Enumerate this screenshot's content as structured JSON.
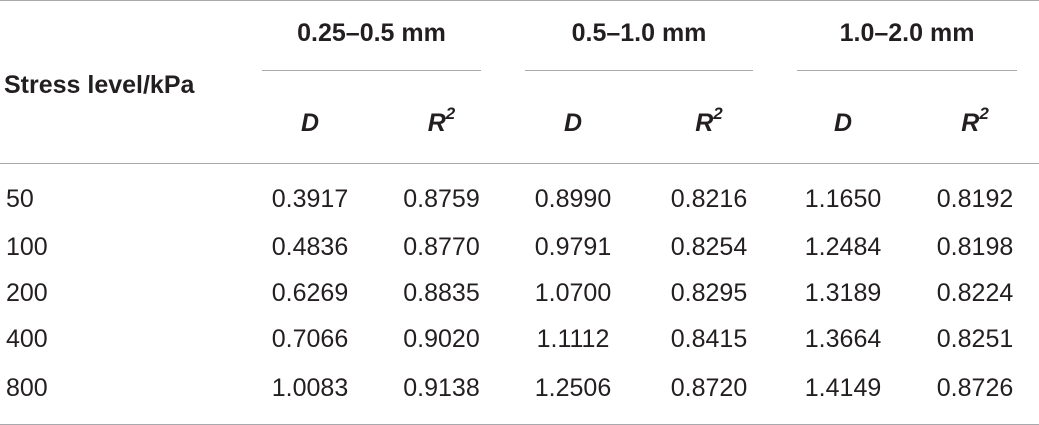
{
  "table": {
    "stub_header": "Stress level/kPa",
    "groups": [
      {
        "label": "0.25–0.5 mm"
      },
      {
        "label": "0.5–1.0 mm"
      },
      {
        "label": "1.0–2.0 mm"
      }
    ],
    "sub_headers": {
      "d": "D",
      "r": "R",
      "r_sup": "2"
    },
    "rows": [
      {
        "stress": "50",
        "values": [
          "0.3917",
          "0.8759",
          "0.8990",
          "0.8216",
          "1.1650",
          "0.8192"
        ]
      },
      {
        "stress": "100",
        "values": [
          "0.4836",
          "0.8770",
          "0.9791",
          "0.8254",
          "1.2484",
          "0.8198"
        ]
      },
      {
        "stress": "200",
        "values": [
          "0.6269",
          "0.8835",
          "1.0700",
          "0.8295",
          "1.3189",
          "0.8224"
        ]
      },
      {
        "stress": "400",
        "values": [
          "0.7066",
          "0.9020",
          "1.1112",
          "0.8415",
          "1.3664",
          "0.8251"
        ]
      },
      {
        "stress": "800",
        "values": [
          "1.0083",
          "0.9138",
          "1.2506",
          "0.8720",
          "1.4149",
          "0.8726"
        ]
      }
    ]
  }
}
